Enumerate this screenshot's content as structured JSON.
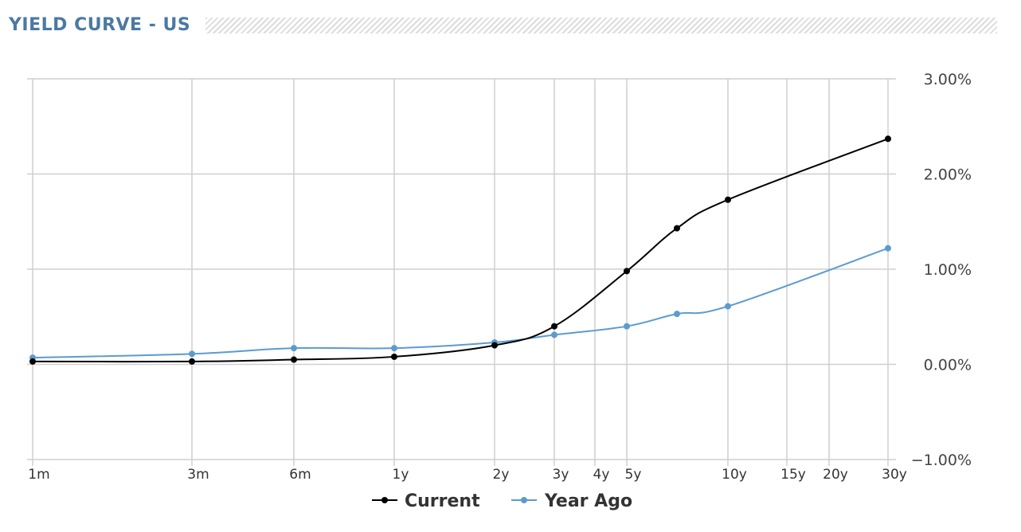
{
  "header": {
    "title": "YIELD CURVE - US"
  },
  "colors": {
    "current": "#000000",
    "year_ago": "#5b9bd0",
    "grid": "#cfcfcf",
    "title": "#4a79a3"
  },
  "chart_data": {
    "type": "line",
    "title": "YIELD CURVE - US",
    "x_tick_labels": [
      "1m",
      "3m",
      "6m",
      "1y",
      "2y",
      "3y",
      "4y",
      "5y",
      "10y",
      "15y",
      "20y",
      "30y"
    ],
    "x_scale": "maturity (log-like)",
    "y_tick_labels": [
      "3.00%",
      "2.00%",
      "1.00%",
      "0.00%",
      "−1.00%"
    ],
    "ylim": [
      -1.0,
      3.0
    ],
    "y_unit": "%",
    "grid": true,
    "legend": "bottom-center",
    "series": [
      {
        "name": "Current",
        "color": "#000000",
        "points": [
          {
            "x": "1m",
            "y": 0.03
          },
          {
            "x": "3m",
            "y": 0.03
          },
          {
            "x": "6m",
            "y": 0.05
          },
          {
            "x": "1y",
            "y": 0.08
          },
          {
            "x": "2y",
            "y": 0.2
          },
          {
            "x": "3y",
            "y": 0.4
          },
          {
            "x": "5y",
            "y": 0.98
          },
          {
            "x": "7y",
            "y": 1.43
          },
          {
            "x": "10y",
            "y": 1.73
          },
          {
            "x": "30y",
            "y": 2.37
          }
        ]
      },
      {
        "name": "Year Ago",
        "color": "#5b9bd0",
        "points": [
          {
            "x": "1m",
            "y": 0.07
          },
          {
            "x": "3m",
            "y": 0.11
          },
          {
            "x": "6m",
            "y": 0.17
          },
          {
            "x": "1y",
            "y": 0.17
          },
          {
            "x": "2y",
            "y": 0.23
          },
          {
            "x": "3y",
            "y": 0.31
          },
          {
            "x": "5y",
            "y": 0.4
          },
          {
            "x": "7y",
            "y": 0.53
          },
          {
            "x": "10y",
            "y": 0.61
          },
          {
            "x": "30y",
            "y": 1.22
          }
        ]
      }
    ]
  }
}
